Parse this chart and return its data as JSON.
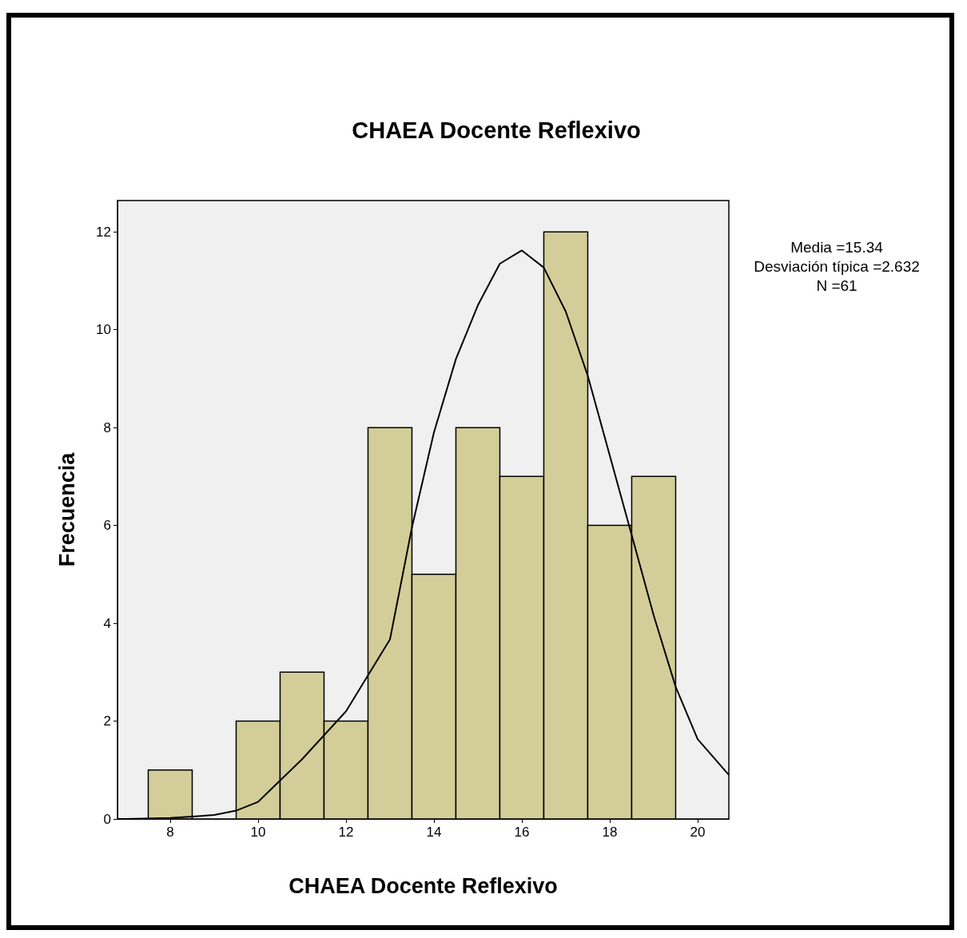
{
  "chart_data": {
    "type": "histogram",
    "title": "CHAEA Docente Reflexivo",
    "xlabel": "CHAEA Docente Reflexivo",
    "ylabel": "Frecuencia",
    "bins": [
      7.5,
      8.5,
      9.5,
      10.5,
      11.5,
      12.5,
      13.5,
      14.5,
      15.5,
      16.5,
      17.5,
      18.5,
      19.5
    ],
    "values": [
      1,
      0,
      2,
      3,
      2,
      8,
      5,
      8,
      7,
      12,
      6,
      7
    ],
    "color": "#d3ce99",
    "series": [
      {
        "type": "line",
        "color": "#000000",
        "x": [
          6.8,
          7,
          8,
          9,
          9.5,
          10,
          11,
          12,
          13,
          13.5,
          14,
          14.5,
          15,
          15.5,
          16,
          16.5,
          17,
          17.5,
          18,
          18.5,
          19,
          19.5,
          20,
          20.71
        ],
        "values": [
          0,
          0,
          0.02,
          0.08,
          0.17,
          0.35,
          1.22,
          2.2,
          3.67,
          5.96,
          7.9,
          9.4,
          10.5,
          11.35,
          11.62,
          11.27,
          10.37,
          9.06,
          7.43,
          5.8,
          4.16,
          2.7,
          1.63,
          0.9
        ]
      }
    ],
    "xlim": [
      6.8,
      20.71
    ],
    "xticks": [
      8,
      10,
      12,
      14,
      16,
      18,
      20
    ],
    "ylim": [
      0,
      12.64
    ],
    "yticks": [
      0,
      2,
      4,
      6,
      8,
      10,
      12
    ],
    "grid": false,
    "annotations": [
      "Media =15.34",
      "Desviación típica =2.632",
      "N =61"
    ]
  }
}
